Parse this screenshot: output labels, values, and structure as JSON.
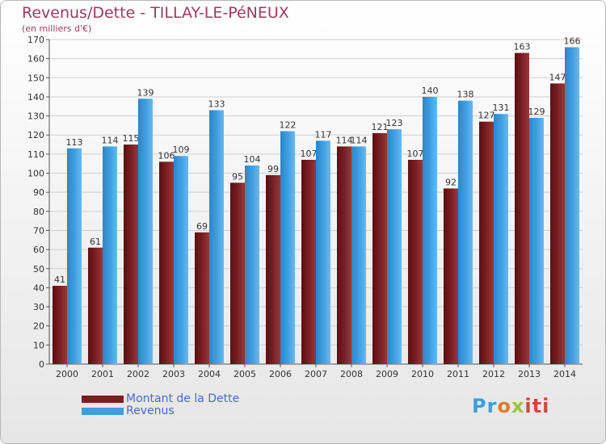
{
  "title": "Revenus/Dette - TILLAY-LE-PéNEUX",
  "subtitle": "(en milliers d'€)",
  "colors": {
    "dette": "#7a1e22",
    "revenus": "#3f9ee0",
    "axis": "#555555",
    "grid": "#cfcfcf"
  },
  "legend": {
    "dette": "Montant de la Dette",
    "revenus": "Revenus"
  },
  "logo": {
    "parts": [
      "Pr",
      "o",
      "x",
      "iti"
    ]
  },
  "chart_data": {
    "type": "bar",
    "categories": [
      "2000",
      "2001",
      "2002",
      "2003",
      "2004",
      "2005",
      "2006",
      "2007",
      "2008",
      "2009",
      "2010",
      "2011",
      "2012",
      "2013",
      "2014"
    ],
    "series": [
      {
        "name": "Montant de la Dette",
        "values": [
          41,
          61,
          115,
          106,
          69,
          95,
          99,
          107,
          114,
          121,
          107,
          92,
          127,
          163,
          147
        ]
      },
      {
        "name": "Revenus",
        "values": [
          113,
          114,
          139,
          109,
          133,
          104,
          122,
          117,
          114,
          123,
          140,
          138,
          131,
          129,
          166
        ]
      }
    ],
    "ylim": [
      0,
      170
    ],
    "ytick_step": 10,
    "grid": true,
    "legend_position": "bottom-left"
  }
}
